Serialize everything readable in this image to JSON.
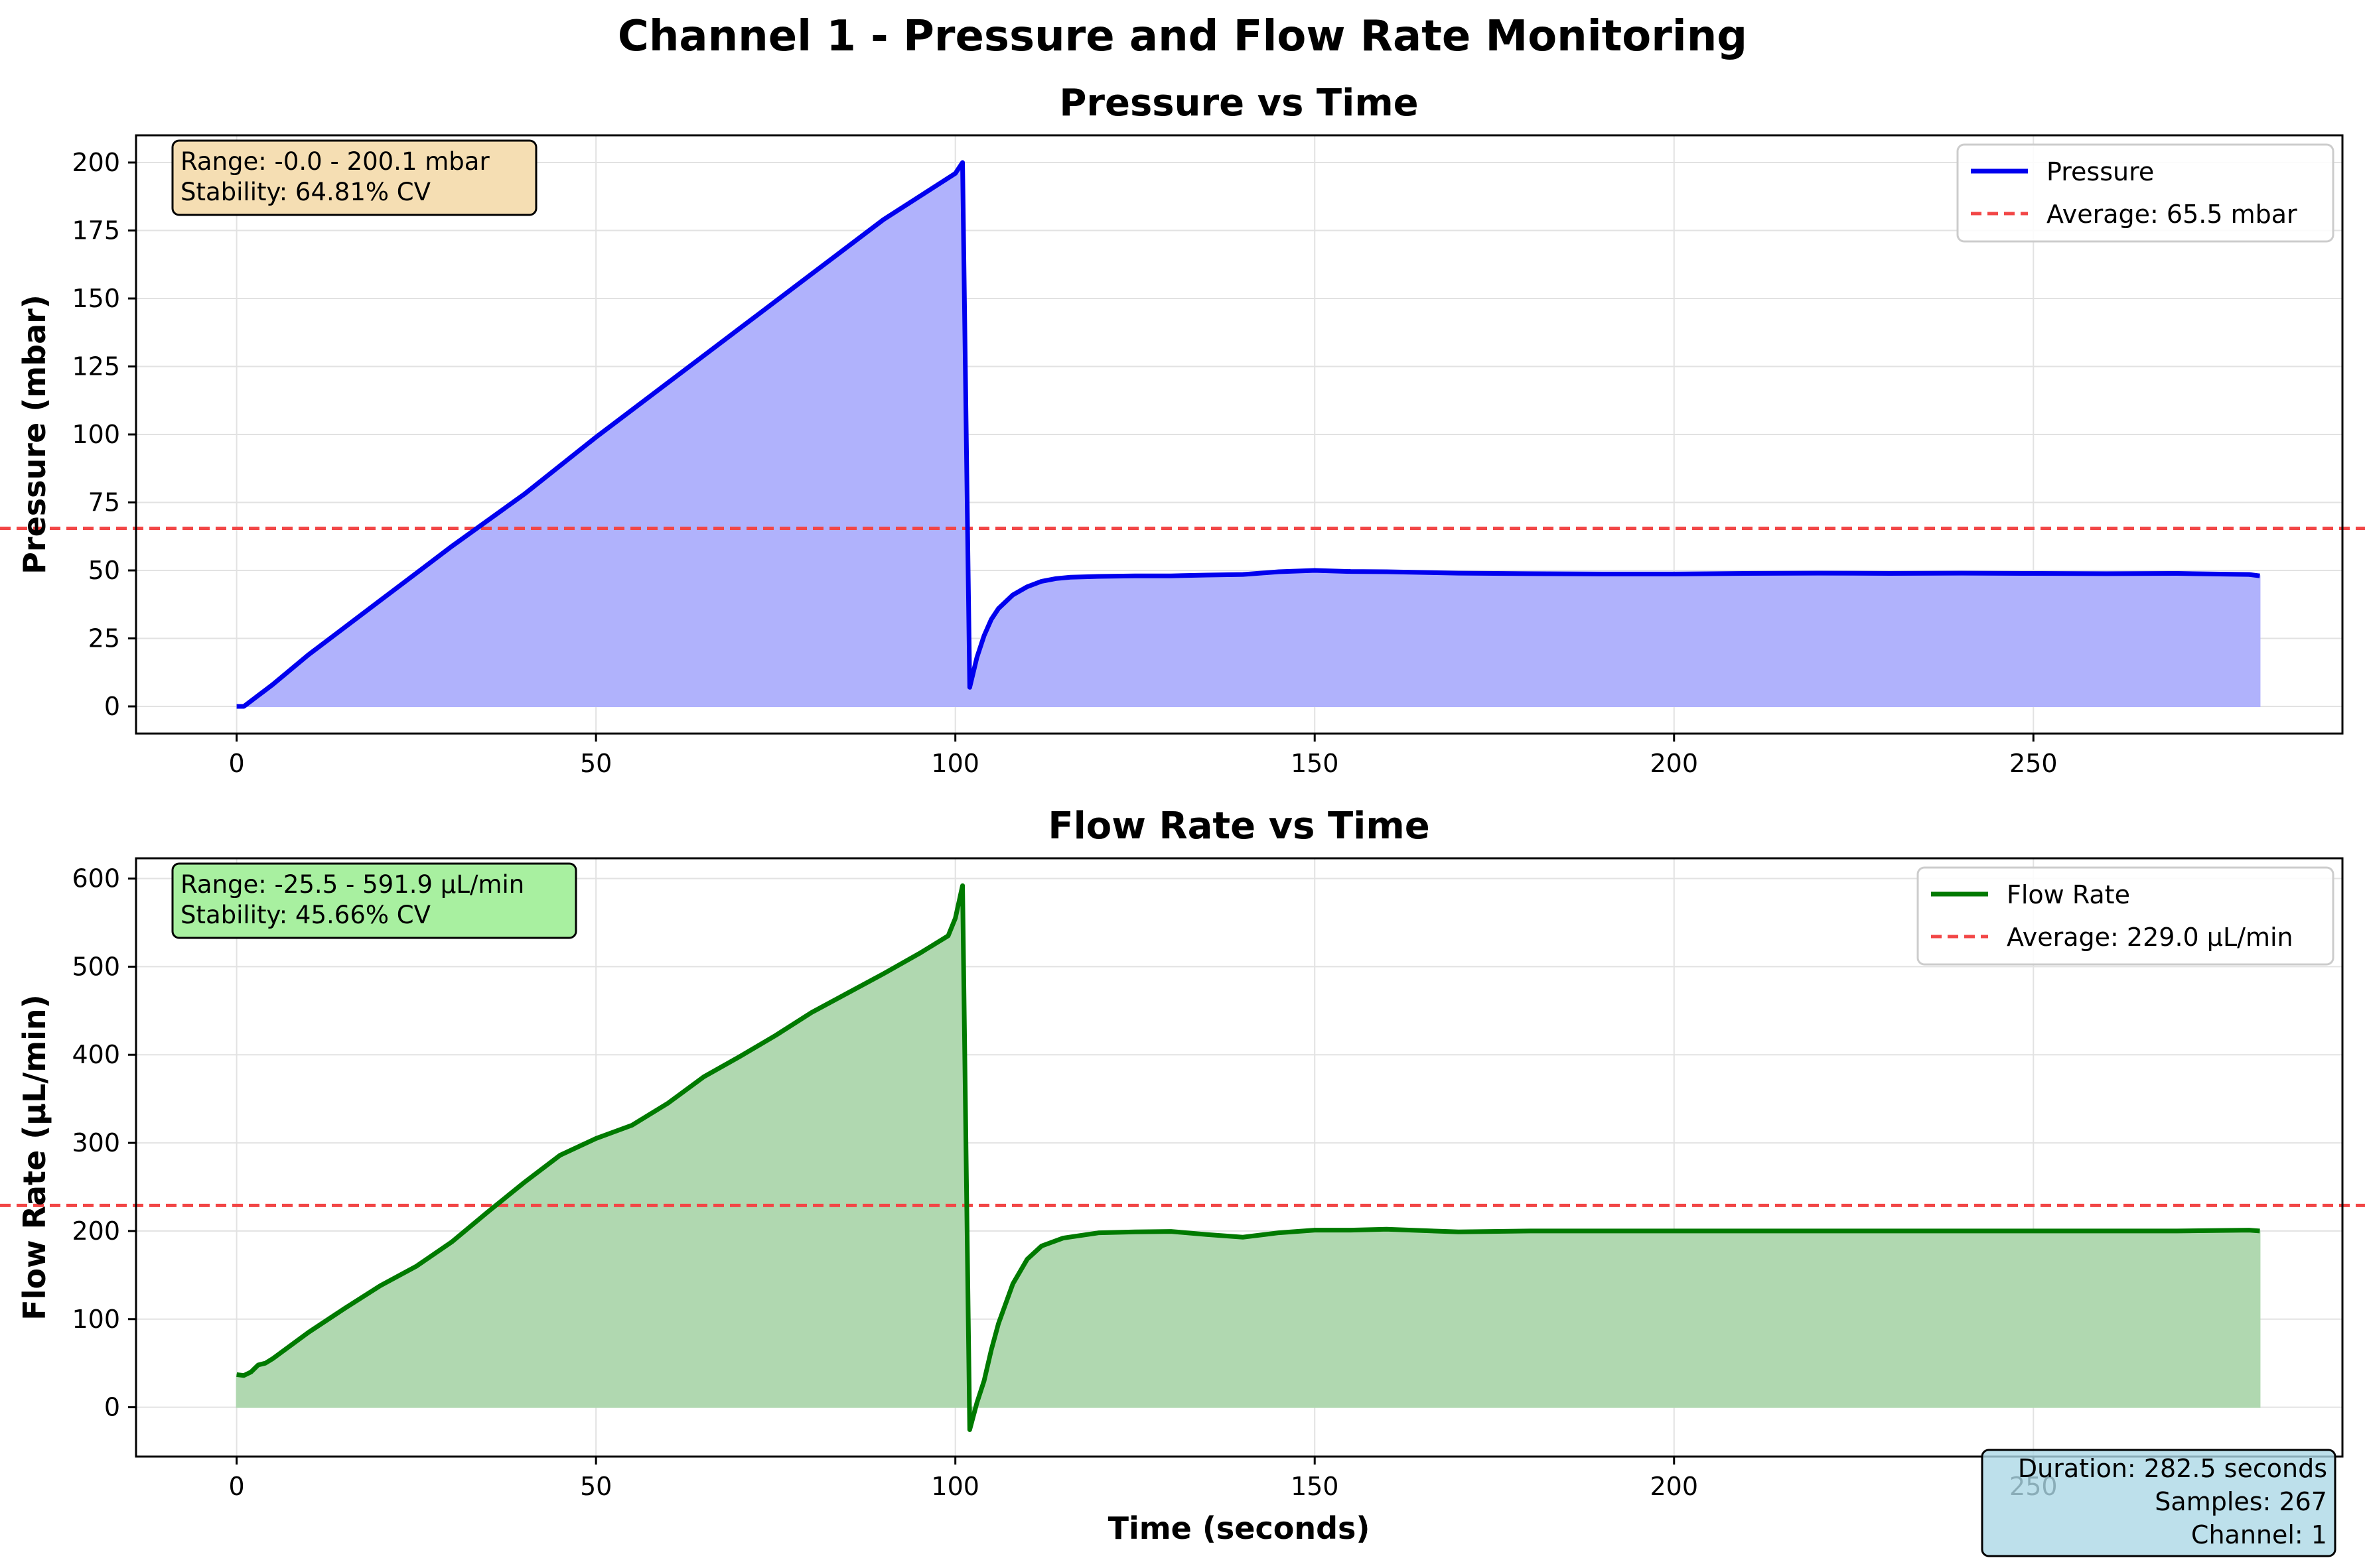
{
  "figure": {
    "suptitle": "Channel 1 - Pressure and Flow Rate Monitoring",
    "summary_lines": [
      "Duration: 282.5 seconds",
      "Samples: 267",
      "Channel: 1"
    ]
  },
  "colors": {
    "pressure_line": "#0000ee",
    "pressure_fill": "#b0b2fc",
    "flow_line": "#007a00",
    "flow_fill": "#b0d8b0",
    "average_line": "#f24646",
    "pressure_box": "#f5deb3",
    "flow_box": "#a8f0a0",
    "summary_box": "#add8e6",
    "grid": "#e2e2e2"
  },
  "chart_data": [
    {
      "type": "area",
      "title": "Pressure vs Time",
      "xlabel": "",
      "ylabel": "Pressure (mbar)",
      "xlim": [
        -14,
        293
      ],
      "ylim": [
        -10,
        210
      ],
      "xticks": [
        0,
        50,
        100,
        150,
        200,
        250
      ],
      "yticks": [
        0,
        25,
        50,
        75,
        100,
        125,
        150,
        175,
        200
      ],
      "grid": true,
      "legend_position": "top-right",
      "average": 65.5,
      "stats_box": [
        "Range: -0.0 - 200.1 mbar",
        "Stability: 64.81% CV"
      ],
      "series": [
        {
          "name": "Pressure",
          "x": [
            0,
            1,
            2,
            3,
            4,
            5,
            10,
            20,
            30,
            40,
            50,
            60,
            70,
            80,
            90,
            100,
            101,
            102,
            103,
            104,
            105,
            106,
            108,
            110,
            112,
            114,
            116,
            120,
            125,
            130,
            135,
            140,
            145,
            150,
            155,
            160,
            170,
            180,
            190,
            200,
            210,
            220,
            230,
            240,
            250,
            260,
            270,
            280,
            281.5
          ],
          "y": [
            0,
            0,
            2,
            4,
            6,
            8,
            19,
            39,
            59,
            78,
            99,
            119,
            139,
            159,
            179,
            196,
            200,
            7,
            18,
            26,
            32,
            36,
            41,
            44,
            46,
            47,
            47.5,
            47.8,
            48,
            48,
            48.3,
            48.5,
            49.5,
            50,
            49.6,
            49.5,
            49,
            48.8,
            48.7,
            48.7,
            48.9,
            49,
            48.9,
            49,
            48.9,
            48.8,
            48.9,
            48.5,
            48
          ]
        }
      ],
      "reference_line": {
        "name": "Average: 65.5 mbar",
        "y": 65.5
      }
    },
    {
      "type": "area",
      "title": "Flow Rate vs Time",
      "xlabel": "Time (seconds)",
      "ylabel": "Flow Rate (µL/min)",
      "xlim": [
        -14,
        293
      ],
      "ylim": [
        -56,
        623
      ],
      "xticks": [
        0,
        50,
        100,
        150,
        200,
        250
      ],
      "yticks": [
        0,
        100,
        200,
        300,
        400,
        500,
        600
      ],
      "grid": true,
      "legend_position": "top-right",
      "average": 229.0,
      "stats_box": [
        "Range: -25.5 - 591.9 µL/min",
        "Stability: 45.66% CV"
      ],
      "series": [
        {
          "name": "Flow Rate",
          "x": [
            0,
            1,
            2,
            3,
            4,
            5,
            10,
            15,
            20,
            25,
            30,
            35,
            40,
            45,
            50,
            55,
            60,
            65,
            70,
            75,
            80,
            85,
            90,
            95,
            99,
            100,
            101,
            102,
            103,
            104,
            105,
            106,
            108,
            110,
            112,
            115,
            120,
            125,
            130,
            135,
            140,
            145,
            150,
            155,
            160,
            170,
            180,
            190,
            200,
            210,
            220,
            230,
            240,
            250,
            260,
            270,
            280,
            281.5
          ],
          "y": [
            37,
            36,
            40,
            48,
            50,
            55,
            85,
            112,
            138,
            160,
            188,
            222,
            255,
            286,
            305,
            320,
            345,
            375,
            398,
            422,
            448,
            470,
            492,
            515,
            535,
            555,
            591.9,
            -25.5,
            5,
            30,
            65,
            95,
            140,
            168,
            183,
            192,
            198,
            199,
            199.5,
            196,
            193,
            198,
            201,
            201,
            202,
            199,
            200,
            200,
            200,
            200,
            200,
            200,
            200,
            200,
            200,
            200,
            201,
            200
          ]
        }
      ],
      "reference_line": {
        "name": "Average: 229.0 µL/min",
        "y": 229.0
      }
    }
  ]
}
